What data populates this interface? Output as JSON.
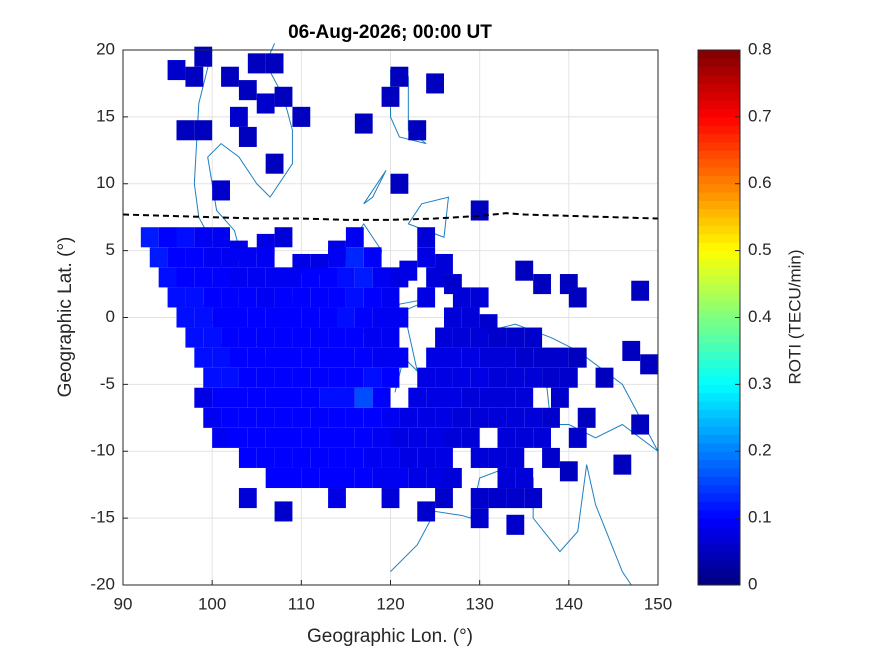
{
  "chart_data": {
    "type": "heatmap",
    "title": "06-Aug-2026; 00:00 UT",
    "xlabel": "Geographic Lon. (°)",
    "ylabel": "Geographic Lat. (°)",
    "colorbar_label": "ROTI (TECU/min)",
    "colormap": "jet",
    "xlim": [
      90,
      150
    ],
    "xticks": [
      90,
      100,
      110,
      120,
      130,
      140,
      150
    ],
    "ylim": [
      -20,
      20
    ],
    "yticks": [
      -20,
      -15,
      -10,
      -5,
      0,
      5,
      10,
      15,
      20
    ],
    "clim": [
      0,
      0.8
    ],
    "cticks": [
      0,
      0.1,
      0.2,
      0.3,
      0.4,
      0.5,
      0.6,
      0.7,
      0.8
    ],
    "grid": true,
    "cell_size": [
      2,
      1.5
    ],
    "lines": [
      {
        "color": "#000000",
        "dash": true,
        "x": [
          90,
          95,
          100,
          105,
          110,
          115,
          120,
          125,
          130,
          133,
          135,
          140,
          145,
          150
        ],
        "y": [
          7.7,
          7.6,
          7.5,
          7.4,
          7.4,
          7.3,
          7.3,
          7.4,
          7.6,
          7.8,
          7.7,
          7.6,
          7.5,
          7.4
        ]
      }
    ],
    "cells": [
      [
        96,
        18.5,
        0.06
      ],
      [
        98,
        18,
        0.05
      ],
      [
        99,
        19.5,
        0.05
      ],
      [
        102,
        18,
        0.05
      ],
      [
        104,
        17,
        0.05
      ],
      [
        105,
        19,
        0.05
      ],
      [
        106,
        16,
        0.06
      ],
      [
        107,
        19,
        0.05
      ],
      [
        108,
        16.5,
        0.05
      ],
      [
        110,
        15,
        0.05
      ],
      [
        103,
        15,
        0.06
      ],
      [
        97,
        14,
        0.05
      ],
      [
        99,
        14,
        0.05
      ],
      [
        104,
        13.5,
        0.05
      ],
      [
        107,
        11.5,
        0.05
      ],
      [
        101,
        9.5,
        0.06
      ],
      [
        121,
        18,
        0.05
      ],
      [
        120,
        16.5,
        0.05
      ],
      [
        125,
        17.5,
        0.05
      ],
      [
        117,
        14.5,
        0.05
      ],
      [
        123,
        14,
        0.05
      ],
      [
        121,
        10,
        0.05
      ],
      [
        130,
        8,
        0.05
      ],
      [
        93,
        6,
        0.12
      ],
      [
        95,
        6,
        0.1
      ],
      [
        97,
        6,
        0.11
      ],
      [
        99,
        6,
        0.09
      ],
      [
        101,
        6,
        0.09
      ],
      [
        103,
        5,
        0.08
      ],
      [
        106,
        5.5,
        0.08
      ],
      [
        108,
        6,
        0.07
      ],
      [
        114,
        5,
        0.08
      ],
      [
        116,
        6,
        0.09
      ],
      [
        124,
        6,
        0.07
      ],
      [
        94,
        4.5,
        0.12
      ],
      [
        96,
        4.5,
        0.1
      ],
      [
        98,
        4.5,
        0.1
      ],
      [
        100,
        4.5,
        0.09
      ],
      [
        102,
        4.5,
        0.09
      ],
      [
        104,
        4.5,
        0.09
      ],
      [
        106,
        4.5,
        0.09
      ],
      [
        110,
        4,
        0.08
      ],
      [
        112,
        4,
        0.08
      ],
      [
        114,
        4.5,
        0.09
      ],
      [
        116,
        4.5,
        0.13
      ],
      [
        118,
        4.5,
        0.1
      ],
      [
        122,
        3.5,
        0.08
      ],
      [
        124,
        4.5,
        0.08
      ],
      [
        126,
        4,
        0.07
      ],
      [
        95,
        3,
        0.11
      ],
      [
        97,
        3,
        0.1
      ],
      [
        99,
        3,
        0.1
      ],
      [
        101,
        3,
        0.1
      ],
      [
        103,
        3,
        0.09
      ],
      [
        105,
        3,
        0.09
      ],
      [
        107,
        3,
        0.09
      ],
      [
        109,
        3,
        0.09
      ],
      [
        111,
        3,
        0.1
      ],
      [
        113,
        3,
        0.1
      ],
      [
        115,
        3,
        0.11
      ],
      [
        117,
        3,
        0.12
      ],
      [
        119,
        3,
        0.09
      ],
      [
        121,
        3,
        0.08
      ],
      [
        125,
        3,
        0.07
      ],
      [
        127,
        2.5,
        0.06
      ],
      [
        135,
        3.5,
        0.05
      ],
      [
        137,
        2.5,
        0.05
      ],
      [
        140,
        2.5,
        0.05
      ],
      [
        141,
        1.5,
        0.05
      ],
      [
        148,
        2,
        0.05
      ],
      [
        96,
        1.5,
        0.11
      ],
      [
        98,
        1.5,
        0.11
      ],
      [
        100,
        1.5,
        0.1
      ],
      [
        102,
        1.5,
        0.1
      ],
      [
        104,
        1.5,
        0.1
      ],
      [
        106,
        1.5,
        0.09
      ],
      [
        108,
        1.5,
        0.1
      ],
      [
        110,
        1.5,
        0.1
      ],
      [
        112,
        1.5,
        0.1
      ],
      [
        114,
        1.5,
        0.1
      ],
      [
        116,
        1.5,
        0.11
      ],
      [
        118,
        1.5,
        0.1
      ],
      [
        120,
        1.5,
        0.09
      ],
      [
        124,
        1.5,
        0.08
      ],
      [
        128,
        1.5,
        0.07
      ],
      [
        130,
        1.5,
        0.07
      ],
      [
        97,
        0,
        0.11
      ],
      [
        99,
        0,
        0.11
      ],
      [
        101,
        0,
        0.1
      ],
      [
        103,
        0,
        0.1
      ],
      [
        105,
        0,
        0.1
      ],
      [
        107,
        0,
        0.1
      ],
      [
        109,
        0,
        0.1
      ],
      [
        111,
        0,
        0.1
      ],
      [
        113,
        0,
        0.1
      ],
      [
        115,
        0,
        0.11
      ],
      [
        117,
        0,
        0.1
      ],
      [
        119,
        0,
        0.09
      ],
      [
        121,
        0,
        0.09
      ],
      [
        127,
        0,
        0.07
      ],
      [
        129,
        0,
        0.07
      ],
      [
        131,
        -0.5,
        0.06
      ],
      [
        98,
        -1.5,
        0.11
      ],
      [
        100,
        -1.5,
        0.11
      ],
      [
        102,
        -1.5,
        0.1
      ],
      [
        104,
        -1.5,
        0.1
      ],
      [
        106,
        -1.5,
        0.1
      ],
      [
        108,
        -1.5,
        0.1
      ],
      [
        110,
        -1.5,
        0.1
      ],
      [
        112,
        -1.5,
        0.1
      ],
      [
        114,
        -1.5,
        0.1
      ],
      [
        116,
        -1.5,
        0.1
      ],
      [
        118,
        -1.5,
        0.09
      ],
      [
        120,
        -1.5,
        0.09
      ],
      [
        126,
        -1.5,
        0.07
      ],
      [
        128,
        -1.5,
        0.07
      ],
      [
        130,
        -1.5,
        0.07
      ],
      [
        132,
        -1.5,
        0.06
      ],
      [
        134,
        -1.5,
        0.06
      ],
      [
        136,
        -1.5,
        0.06
      ],
      [
        99,
        -3,
        0.11
      ],
      [
        101,
        -3,
        0.11
      ],
      [
        103,
        -3,
        0.1
      ],
      [
        105,
        -3,
        0.1
      ],
      [
        107,
        -3,
        0.1
      ],
      [
        109,
        -3,
        0.1
      ],
      [
        111,
        -3,
        0.1
      ],
      [
        113,
        -3,
        0.1
      ],
      [
        115,
        -3,
        0.1
      ],
      [
        117,
        -3,
        0.1
      ],
      [
        119,
        -3,
        0.09
      ],
      [
        121,
        -3,
        0.09
      ],
      [
        125,
        -3,
        0.08
      ],
      [
        127,
        -3,
        0.08
      ],
      [
        129,
        -3,
        0.08
      ],
      [
        131,
        -3,
        0.07
      ],
      [
        133,
        -3,
        0.07
      ],
      [
        135,
        -3,
        0.06
      ],
      [
        137,
        -3,
        0.06
      ],
      [
        139,
        -3,
        0.06
      ],
      [
        141,
        -3,
        0.05
      ],
      [
        147,
        -2.5,
        0.05
      ],
      [
        149,
        -3.5,
        0.05
      ],
      [
        100,
        -4.5,
        0.11
      ],
      [
        102,
        -4.5,
        0.11
      ],
      [
        104,
        -4.5,
        0.1
      ],
      [
        106,
        -4.5,
        0.1
      ],
      [
        108,
        -4.5,
        0.1
      ],
      [
        110,
        -4.5,
        0.1
      ],
      [
        112,
        -4.5,
        0.1
      ],
      [
        114,
        -4.5,
        0.1
      ],
      [
        116,
        -4.5,
        0.1
      ],
      [
        118,
        -4.5,
        0.11
      ],
      [
        120,
        -4.5,
        0.1
      ],
      [
        124,
        -4.5,
        0.08
      ],
      [
        126,
        -4.5,
        0.08
      ],
      [
        128,
        -4.5,
        0.08
      ],
      [
        130,
        -4.5,
        0.08
      ],
      [
        132,
        -4.5,
        0.07
      ],
      [
        134,
        -4.5,
        0.07
      ],
      [
        136,
        -4.5,
        0.07
      ],
      [
        138,
        -4.5,
        0.06
      ],
      [
        140,
        -4.5,
        0.06
      ],
      [
        144,
        -4.5,
        0.05
      ],
      [
        99,
        -6,
        0.08
      ],
      [
        101,
        -6,
        0.1
      ],
      [
        103,
        -6,
        0.1
      ],
      [
        105,
        -6,
        0.1
      ],
      [
        107,
        -6,
        0.1
      ],
      [
        109,
        -6,
        0.1
      ],
      [
        111,
        -6,
        0.1
      ],
      [
        113,
        -6,
        0.11
      ],
      [
        115,
        -6,
        0.11
      ],
      [
        117,
        -6,
        0.16
      ],
      [
        119,
        -6,
        0.1
      ],
      [
        123,
        -6,
        0.08
      ],
      [
        125,
        -6,
        0.08
      ],
      [
        127,
        -6,
        0.08
      ],
      [
        129,
        -6,
        0.07
      ],
      [
        131,
        -6,
        0.07
      ],
      [
        133,
        -6,
        0.07
      ],
      [
        135,
        -6,
        0.07
      ],
      [
        139,
        -6,
        0.06
      ],
      [
        100,
        -7.5,
        0.09
      ],
      [
        102,
        -7.5,
        0.1
      ],
      [
        104,
        -7.5,
        0.1
      ],
      [
        106,
        -7.5,
        0.1
      ],
      [
        108,
        -7.5,
        0.1
      ],
      [
        110,
        -7.5,
        0.1
      ],
      [
        112,
        -7.5,
        0.1
      ],
      [
        114,
        -7.5,
        0.1
      ],
      [
        116,
        -7.5,
        0.1
      ],
      [
        118,
        -7.5,
        0.1
      ],
      [
        120,
        -7.5,
        0.09
      ],
      [
        122,
        -7.5,
        0.08
      ],
      [
        124,
        -7.5,
        0.08
      ],
      [
        126,
        -7.5,
        0.08
      ],
      [
        128,
        -7.5,
        0.07
      ],
      [
        130,
        -7.5,
        0.07
      ],
      [
        132,
        -7.5,
        0.07
      ],
      [
        134,
        -7.5,
        0.07
      ],
      [
        136,
        -7.5,
        0.07
      ],
      [
        138,
        -7.5,
        0.06
      ],
      [
        142,
        -7.5,
        0.05
      ],
      [
        148,
        -8,
        0.05
      ],
      [
        101,
        -9,
        0.09
      ],
      [
        103,
        -9,
        0.1
      ],
      [
        105,
        -9,
        0.1
      ],
      [
        107,
        -9,
        0.1
      ],
      [
        109,
        -9,
        0.1
      ],
      [
        111,
        -9,
        0.1
      ],
      [
        113,
        -9,
        0.1
      ],
      [
        115,
        -9,
        0.1
      ],
      [
        117,
        -9,
        0.1
      ],
      [
        119,
        -9,
        0.09
      ],
      [
        121,
        -9,
        0.08
      ],
      [
        123,
        -9,
        0.08
      ],
      [
        125,
        -9,
        0.08
      ],
      [
        127,
        -9,
        0.07
      ],
      [
        129,
        -9,
        0.07
      ],
      [
        133,
        -9,
        0.07
      ],
      [
        135,
        -9,
        0.07
      ],
      [
        137,
        -9,
        0.07
      ],
      [
        141,
        -9,
        0.06
      ],
      [
        104,
        -10.5,
        0.1
      ],
      [
        106,
        -10.5,
        0.1
      ],
      [
        108,
        -10.5,
        0.1
      ],
      [
        110,
        -10.5,
        0.1
      ],
      [
        112,
        -10.5,
        0.1
      ],
      [
        114,
        -10.5,
        0.1
      ],
      [
        116,
        -10.5,
        0.1
      ],
      [
        118,
        -10.5,
        0.09
      ],
      [
        120,
        -10.5,
        0.09
      ],
      [
        122,
        -10.5,
        0.08
      ],
      [
        124,
        -10.5,
        0.08
      ],
      [
        126,
        -10.5,
        0.08
      ],
      [
        130,
        -10.5,
        0.07
      ],
      [
        132,
        -10.5,
        0.07
      ],
      [
        134,
        -10.5,
        0.07
      ],
      [
        138,
        -10.5,
        0.06
      ],
      [
        146,
        -11,
        0.05
      ],
      [
        107,
        -12,
        0.1
      ],
      [
        109,
        -12,
        0.1
      ],
      [
        111,
        -12,
        0.1
      ],
      [
        113,
        -12,
        0.1
      ],
      [
        115,
        -12,
        0.1
      ],
      [
        117,
        -12,
        0.1
      ],
      [
        119,
        -12,
        0.09
      ],
      [
        121,
        -12,
        0.09
      ],
      [
        123,
        -12,
        0.08
      ],
      [
        125,
        -12,
        0.08
      ],
      [
        127,
        -12,
        0.07
      ],
      [
        133,
        -12,
        0.07
      ],
      [
        135,
        -12,
        0.07
      ],
      [
        140,
        -11.5,
        0.05
      ],
      [
        104,
        -13.5,
        0.07
      ],
      [
        114,
        -13.5,
        0.08
      ],
      [
        120,
        -13.5,
        0.07
      ],
      [
        126,
        -13.5,
        0.06
      ],
      [
        130,
        -13.5,
        0.06
      ],
      [
        132,
        -13.5,
        0.06
      ],
      [
        134,
        -13.5,
        0.06
      ],
      [
        136,
        -13.5,
        0.06
      ],
      [
        108,
        -14.5,
        0.06
      ],
      [
        124,
        -14.5,
        0.06
      ],
      [
        130,
        -15,
        0.06
      ],
      [
        134,
        -15.5,
        0.06
      ]
    ]
  }
}
